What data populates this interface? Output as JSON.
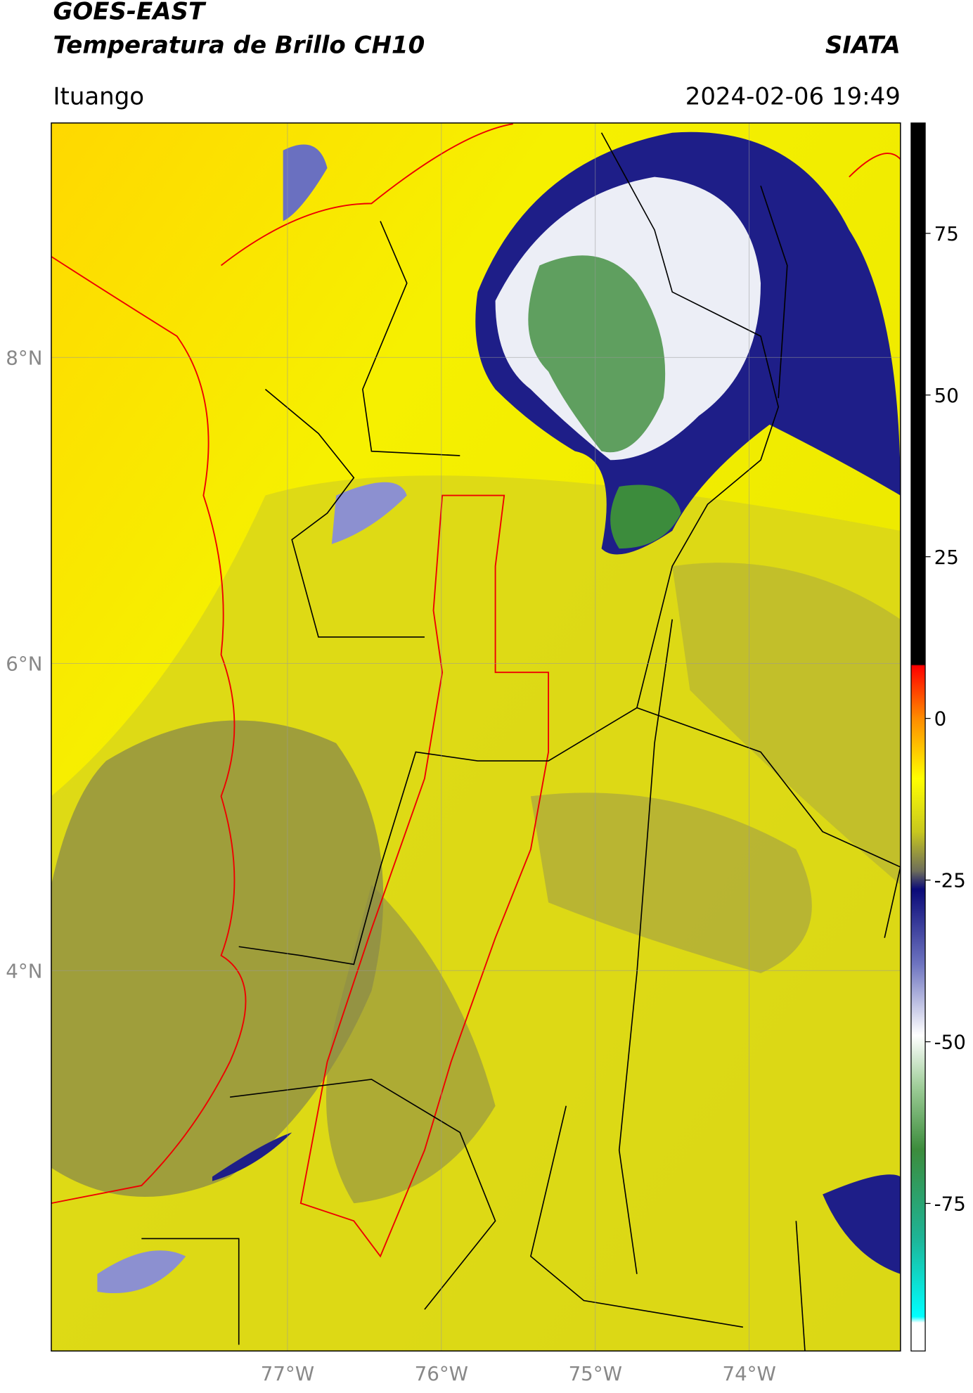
{
  "header": {
    "title_line1": "GOES-EAST",
    "title_line2": "Temperatura de Brillo CH10",
    "brand": "SIATA",
    "region": "Ituango",
    "datetime": "2024-02-06 19:49"
  },
  "map": {
    "lat_ticks": [
      "8°N",
      "6°N",
      "4°N"
    ],
    "lon_ticks": [
      "77°W",
      "76°W",
      "75°W",
      "74°W"
    ]
  },
  "colorbar": {
    "ticks": [
      75,
      50,
      25,
      0,
      -25,
      -50,
      -75
    ]
  }
}
